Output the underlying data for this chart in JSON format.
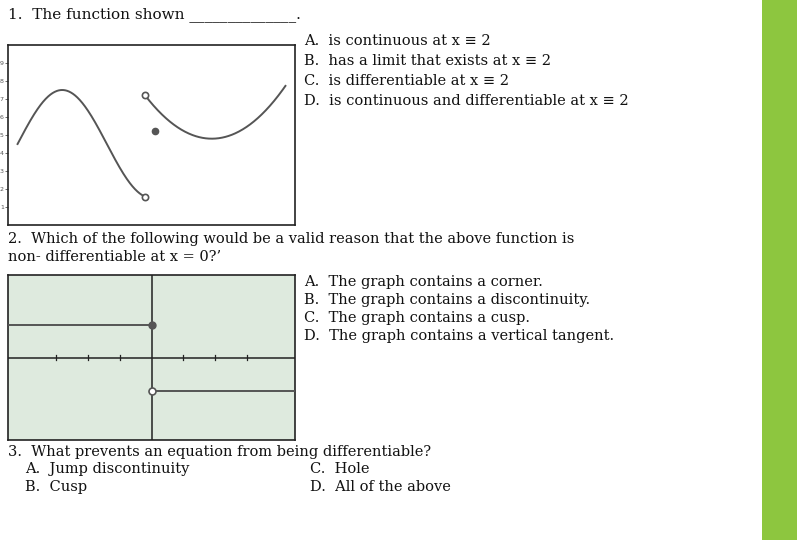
{
  "bg_color": "#ffffff",
  "graph1_bg": "#ffffff",
  "graph2_bg": "#deeade",
  "sidebar_color": "#8dc63f",
  "title_text": "1.  The function shown ______________.",
  "q2_text": "2.  Which of the following would be a valid reason that the above function is\nnon- differentiable at x = 0?’",
  "q3_text": "3.  What prevents an equation from being differentiable?",
  "answers1": [
    "A.  is continuous at x ≡ 2",
    "B.  has a limit that exists at x ≡ 2",
    "C.  is differentiable at x ≡ 2",
    "D.  is continuous and differentiable at x ≡ 2"
  ],
  "answers2": [
    "A.  The graph contains a corner.",
    "B.  The graph contains a discontinuity.",
    "C.  The graph contains a cusp.",
    "D.  The graph contains a vertical tangent."
  ],
  "answers3_left": [
    "A.  Jump discontinuity",
    "B.  Cusp"
  ],
  "answers3_right": [
    "C.  Hole",
    "D.  All of the above"
  ],
  "line_color": "#555555",
  "border_color": "#222222",
  "text_color": "#111111",
  "font_size": 10.5,
  "title_font_size": 11
}
